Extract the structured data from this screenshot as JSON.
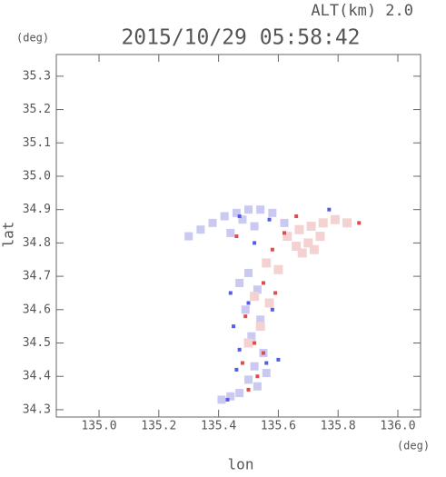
{
  "header": {
    "altitude": "ALT(km) 2.0",
    "y_unit": "(deg)",
    "x_unit": "(deg)"
  },
  "chart_data": {
    "type": "scatter",
    "title": "2015/10/29 05:58:42",
    "x_label": "lon",
    "y_label": "lat",
    "xlim": [
      134.857,
      136.076
    ],
    "ylim": [
      34.278,
      35.365
    ],
    "xticks": [
      {
        "value": 135.0,
        "label": "135.0"
      },
      135.2,
      135.4,
      135.6,
      135.8,
      {
        "value": 136.0,
        "label": "136.0"
      }
    ],
    "yticks": [
      34.3,
      34.4,
      34.5,
      34.6,
      34.7,
      34.8,
      34.9,
      {
        "value": 35.0,
        "label": "35.0"
      },
      35.1,
      35.2,
      35.3
    ],
    "series": [
      {
        "color": "#c9c9f2",
        "size": 9,
        "x": [
          135.3,
          135.34,
          135.38,
          135.42,
          135.46,
          135.5,
          135.54,
          135.58,
          135.62,
          135.44,
          135.48,
          135.52,
          135.47,
          135.5,
          135.53,
          135.49,
          135.54,
          135.51,
          135.55,
          135.52,
          135.56,
          135.5,
          135.53,
          135.47,
          135.44,
          135.41
        ],
        "y": [
          34.82,
          34.84,
          34.86,
          34.88,
          34.89,
          34.9,
          34.9,
          34.89,
          34.86,
          34.83,
          34.87,
          34.85,
          34.68,
          34.71,
          34.66,
          34.6,
          34.57,
          34.52,
          34.47,
          34.43,
          34.41,
          34.39,
          34.37,
          34.35,
          34.34,
          34.33
        ]
      },
      {
        "color": "#f5d2d2",
        "size": 10,
        "x": [
          135.63,
          135.67,
          135.71,
          135.75,
          135.79,
          135.83,
          135.66,
          135.7,
          135.74,
          135.68,
          135.72,
          135.56,
          135.6,
          135.52,
          135.57,
          135.54,
          135.5
        ],
        "y": [
          34.82,
          34.84,
          34.85,
          34.86,
          34.87,
          34.86,
          34.79,
          34.8,
          34.82,
          34.77,
          34.78,
          34.74,
          34.72,
          34.64,
          34.62,
          34.55,
          34.5
        ]
      },
      {
        "color": "#e04b4b",
        "size": 4,
        "x": [
          135.62,
          135.66,
          135.58,
          135.46,
          135.55,
          135.59,
          135.49,
          135.52,
          135.55,
          135.48,
          135.53,
          135.5,
          135.87
        ],
        "y": [
          34.83,
          34.88,
          34.78,
          34.82,
          34.68,
          34.65,
          34.58,
          34.5,
          34.47,
          34.44,
          34.4,
          34.36,
          34.86
        ]
      },
      {
        "color": "#5a5ae6",
        "size": 4,
        "x": [
          135.47,
          135.52,
          135.57,
          135.44,
          135.5,
          135.45,
          135.58,
          135.47,
          135.56,
          135.46,
          135.6,
          135.43,
          135.77
        ],
        "y": [
          34.88,
          34.8,
          34.87,
          34.65,
          34.62,
          34.55,
          34.6,
          34.48,
          34.44,
          34.42,
          34.45,
          34.33,
          34.9
        ]
      }
    ]
  }
}
